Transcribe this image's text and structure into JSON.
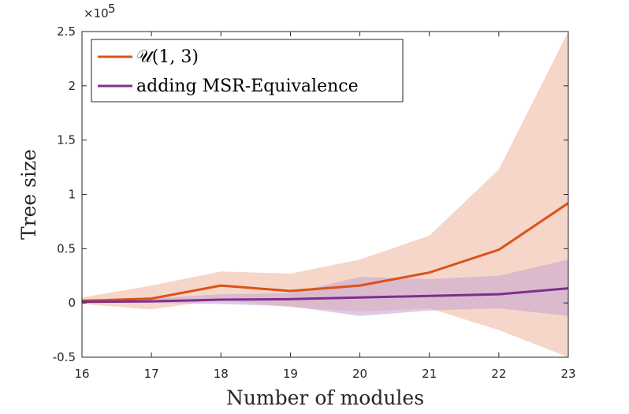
{
  "chart_data": {
    "type": "line",
    "xlabel": "Number of modules",
    "ylabel": "Tree size",
    "y_exponent_label": "×10",
    "y_exponent_power": "5",
    "xlim": [
      16,
      23
    ],
    "ylim": [
      -0.5,
      2.5
    ],
    "x_ticks": [
      16,
      17,
      18,
      19,
      20,
      21,
      22,
      23
    ],
    "y_ticks": [
      -0.5,
      0,
      0.5,
      1,
      1.5,
      2,
      2.5
    ],
    "y_tick_labels": [
      "-0.5",
      "0",
      "0.5",
      "1",
      "1.5",
      "2",
      "2.5"
    ],
    "x_tick_labels": [
      "16",
      "17",
      "18",
      "19",
      "20",
      "21",
      "22",
      "23"
    ],
    "legend_position": "top-left",
    "grid": false,
    "x": [
      16,
      17,
      18,
      19,
      20,
      21,
      22,
      23
    ],
    "series": [
      {
        "name": "𝒰(1, 3)",
        "color": "#D95319",
        "band_color": "#F5CFC0",
        "values": [
          0.02,
          0.04,
          0.16,
          0.11,
          0.16,
          0.28,
          0.49,
          0.92
        ],
        "upper": [
          0.05,
          0.16,
          0.29,
          0.27,
          0.4,
          0.62,
          1.23,
          2.5
        ],
        "lower": [
          -0.01,
          -0.06,
          0.03,
          -0.04,
          -0.08,
          -0.05,
          -0.25,
          -0.5
        ]
      },
      {
        "name": "adding MSR-Equivalence",
        "color": "#7E2F8E",
        "band_color": "#C9A7D2",
        "values": [
          0.01,
          0.015,
          0.03,
          0.035,
          0.05,
          0.065,
          0.08,
          0.135
        ],
        "upper": [
          0.03,
          0.04,
          0.08,
          0.09,
          0.24,
          0.22,
          0.25,
          0.4
        ],
        "lower": [
          0.0,
          0.0,
          -0.01,
          -0.03,
          -0.12,
          -0.07,
          -0.05,
          -0.12
        ]
      }
    ]
  }
}
